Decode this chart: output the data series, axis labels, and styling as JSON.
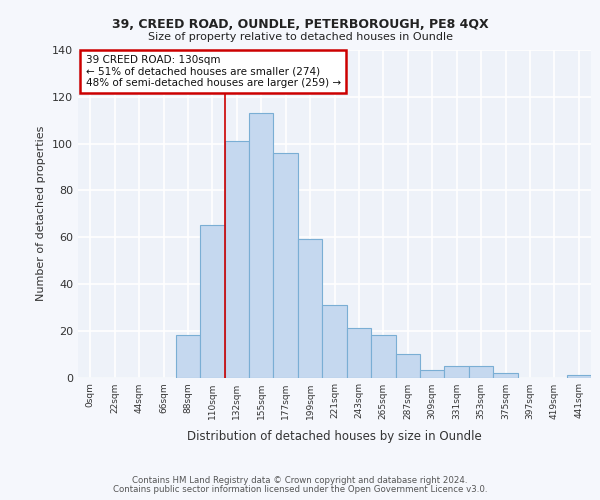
{
  "title1": "39, CREED ROAD, OUNDLE, PETERBOROUGH, PE8 4QX",
  "title2": "Size of property relative to detached houses in Oundle",
  "xlabel": "Distribution of detached houses by size in Oundle",
  "ylabel": "Number of detached properties",
  "categories": [
    "0sqm",
    "22sqm",
    "44sqm",
    "66sqm",
    "88sqm",
    "110sqm",
    "132sqm",
    "155sqm",
    "177sqm",
    "199sqm",
    "221sqm",
    "243sqm",
    "265sqm",
    "287sqm",
    "309sqm",
    "331sqm",
    "353sqm",
    "375sqm",
    "397sqm",
    "419sqm",
    "441sqm"
  ],
  "values": [
    0,
    0,
    0,
    0,
    18,
    65,
    101,
    113,
    96,
    59,
    31,
    21,
    18,
    10,
    3,
    5,
    5,
    2,
    0,
    0,
    1
  ],
  "bar_color": "#c5d8ef",
  "bar_edge_color": "#7aaed4",
  "annotation_line1": "39 CREED ROAD: 130sqm",
  "annotation_line2": "← 51% of detached houses are smaller (274)",
  "annotation_line3": "48% of semi-detached houses are larger (259) →",
  "annotation_box_color": "#ffffff",
  "annotation_border_color": "#cc0000",
  "property_line_x": 5.5,
  "background_color": "#eef2f9",
  "grid_color": "#ffffff",
  "footer1": "Contains HM Land Registry data © Crown copyright and database right 2024.",
  "footer2": "Contains public sector information licensed under the Open Government Licence v3.0.",
  "ylim": [
    0,
    140
  ],
  "yticks": [
    0,
    20,
    40,
    60,
    80,
    100,
    120,
    140
  ]
}
